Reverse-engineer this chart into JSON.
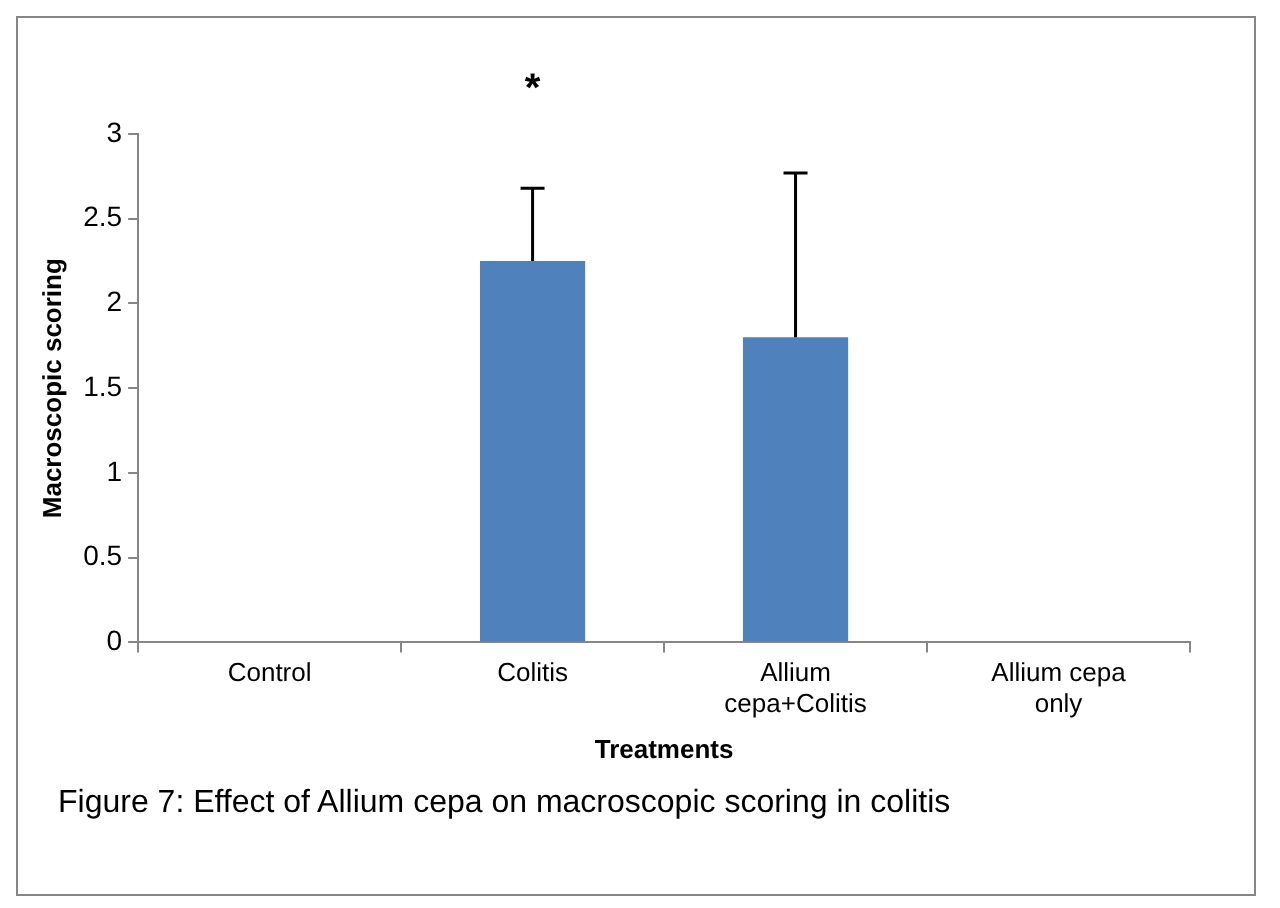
{
  "chart_data": {
    "type": "bar",
    "categories": [
      "Control",
      "Colitis",
      "Allium cepa+Colitis",
      "Allium cepa only"
    ],
    "values": [
      0,
      2.25,
      1.8,
      0
    ],
    "errors": [
      null,
      [
        2.25,
        2.68
      ],
      [
        1.8,
        2.77
      ],
      null
    ],
    "color": "#4f81bd",
    "xlabel": "Treatments",
    "ylabel": "Macroscopic scoring",
    "ylim": [
      0,
      3
    ],
    "yticks": [
      0,
      0.5,
      1,
      1.5,
      2,
      2.5,
      3
    ],
    "grid": false,
    "legend": false,
    "annotations": [
      "*",
      "Figure 7: Effect of Allium cepa on macroscopic scoring in colitis"
    ]
  }
}
